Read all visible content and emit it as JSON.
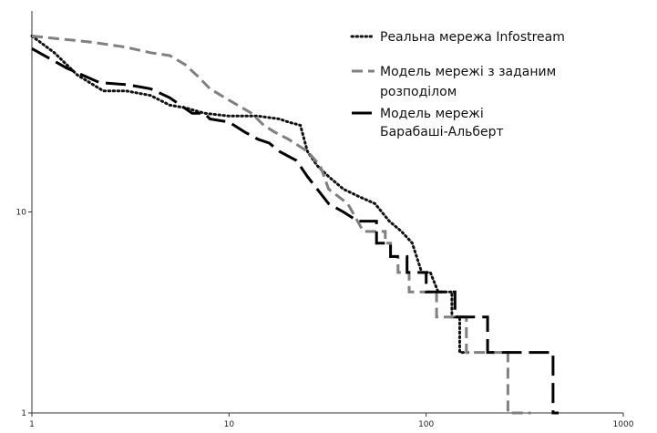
{
  "chart_data": {
    "type": "line",
    "title": "",
    "xlabel": "",
    "ylabel": "",
    "x_scale": "log",
    "y_scale": "log",
    "xlim": [
      1,
      1000
    ],
    "ylim": [
      1,
      100
    ],
    "grid": false,
    "legend_position": "top-right",
    "x_ticks": [
      {
        "value": 1,
        "label": "1"
      },
      {
        "value": 10,
        "label": "10"
      },
      {
        "value": 100,
        "label": "100"
      },
      {
        "value": 1000,
        "label": "1000"
      }
    ],
    "y_ticks": [
      {
        "value": 1,
        "label": "1"
      },
      {
        "value": 10,
        "label": "10"
      }
    ],
    "series": [
      {
        "name": "Реальна мережа Infostream",
        "color": "#111111",
        "line_style": "dotted",
        "points": [
          [
            1,
            75
          ],
          [
            1.3,
            62
          ],
          [
            1.7,
            48
          ],
          [
            2.3,
            40
          ],
          [
            3,
            40
          ],
          [
            4,
            38
          ],
          [
            5,
            34
          ],
          [
            6,
            33
          ],
          [
            7.5,
            31
          ],
          [
            10,
            30
          ],
          [
            14,
            30
          ],
          [
            18,
            29
          ],
          [
            20,
            28
          ],
          [
            23,
            27
          ],
          [
            25,
            20
          ],
          [
            28,
            17
          ],
          [
            32,
            15
          ],
          [
            38,
            13
          ],
          [
            45,
            12
          ],
          [
            55,
            11
          ],
          [
            65,
            9
          ],
          [
            75,
            8
          ],
          [
            85,
            7
          ],
          [
            95,
            5
          ],
          [
            105,
            5
          ],
          [
            115,
            4
          ],
          [
            135,
            4
          ],
          [
            135,
            3
          ],
          [
            148,
            3
          ],
          [
            148,
            2
          ],
          [
            165,
            2
          ]
        ]
      },
      {
        "name": "Модель мережі з заданим розподілом",
        "color": "#808080",
        "line_style": "dashed",
        "points": [
          [
            1,
            75
          ],
          [
            2,
            70
          ],
          [
            3,
            66
          ],
          [
            4,
            62
          ],
          [
            5,
            60
          ],
          [
            6,
            54
          ],
          [
            7,
            47
          ],
          [
            8,
            41
          ],
          [
            10,
            36
          ],
          [
            13,
            31
          ],
          [
            15,
            27
          ],
          [
            17,
            25
          ],
          [
            20,
            23
          ],
          [
            25,
            20
          ],
          [
            29,
            17
          ],
          [
            32,
            13
          ],
          [
            40,
            11
          ],
          [
            48,
            8
          ],
          [
            62,
            8
          ],
          [
            62,
            7
          ],
          [
            66,
            7
          ],
          [
            66,
            6
          ],
          [
            72,
            6
          ],
          [
            72,
            5
          ],
          [
            82,
            5
          ],
          [
            82,
            4
          ],
          [
            113,
            4
          ],
          [
            113,
            3
          ],
          [
            160,
            3
          ],
          [
            160,
            2
          ],
          [
            260,
            2
          ],
          [
            260,
            1
          ],
          [
            340,
            1
          ]
        ]
      },
      {
        "name": "Модель мережі Барабаші-Альберт",
        "color": "#000000",
        "line_style": "longdash",
        "points": [
          [
            1,
            65
          ],
          [
            1.5,
            52
          ],
          [
            2.2,
            44
          ],
          [
            3,
            43
          ],
          [
            3.5,
            42
          ],
          [
            4,
            41
          ],
          [
            5,
            37
          ],
          [
            6.5,
            31
          ],
          [
            7.5,
            31
          ],
          [
            8,
            29
          ],
          [
            10,
            28
          ],
          [
            12,
            25
          ],
          [
            14,
            23
          ],
          [
            16,
            22
          ],
          [
            18,
            20
          ],
          [
            22,
            18
          ],
          [
            25,
            15
          ],
          [
            28,
            13
          ],
          [
            32,
            11
          ],
          [
            38,
            10
          ],
          [
            45,
            9
          ],
          [
            56,
            9
          ],
          [
            56,
            7
          ],
          [
            66,
            7
          ],
          [
            66,
            6
          ],
          [
            80,
            6
          ],
          [
            80,
            5
          ],
          [
            100,
            5
          ],
          [
            100,
            4
          ],
          [
            140,
            4
          ],
          [
            140,
            3
          ],
          [
            205,
            3
          ],
          [
            205,
            2
          ],
          [
            440,
            2
          ],
          [
            440,
            1
          ],
          [
            470,
            1
          ]
        ]
      }
    ]
  }
}
